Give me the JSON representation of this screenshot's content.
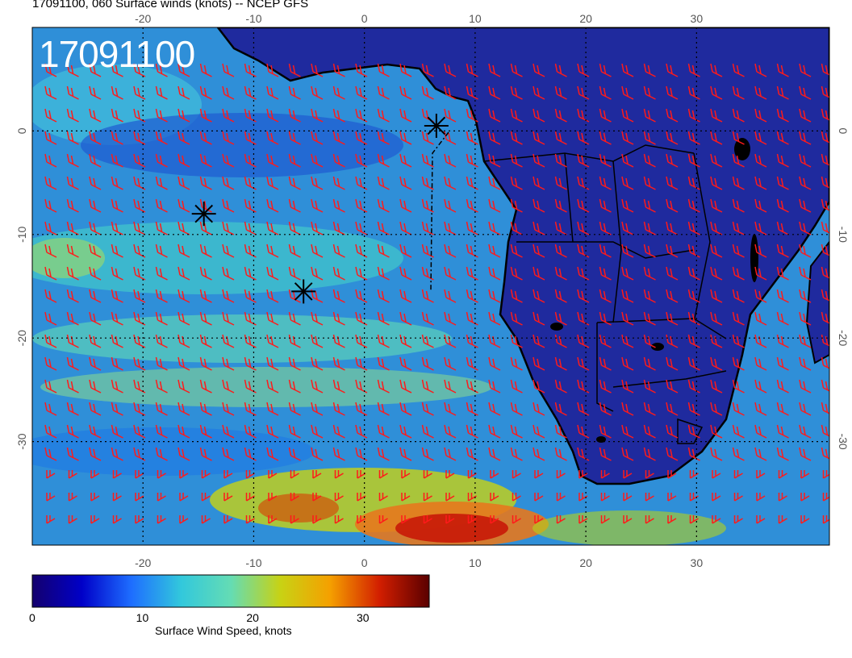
{
  "title": "17091100, 060 Surface winds (knots) -- NCEP GFS",
  "stamp": "17091100",
  "map": {
    "lon_range": [
      -30,
      42
    ],
    "lat_range": [
      -40,
      10
    ],
    "lon_ticks": [
      -20,
      -10,
      0,
      10,
      20,
      30
    ],
    "lat_ticks": [
      0,
      -10,
      -20,
      -30
    ]
  },
  "colorbar": {
    "label": "Surface Wind Speed, knots",
    "range": [
      0,
      36
    ],
    "ticks": [
      0,
      10,
      20,
      30
    ],
    "stops": [
      "#14006e",
      "#0000c8",
      "#1e6eff",
      "#32c8dc",
      "#64dcb4",
      "#c8d214",
      "#f5a000",
      "#d21e00",
      "#5a0000"
    ]
  },
  "markers": [
    {
      "lon": 6.5,
      "lat": 0.5
    },
    {
      "lon": -14.5,
      "lat": -8.0
    },
    {
      "lon": -5.5,
      "lat": -15.5
    }
  ],
  "colors": {
    "barb": "#ff1a1a",
    "land": "#1f2a9e",
    "ocean": "#2f8fd8",
    "coast": "#000000"
  }
}
